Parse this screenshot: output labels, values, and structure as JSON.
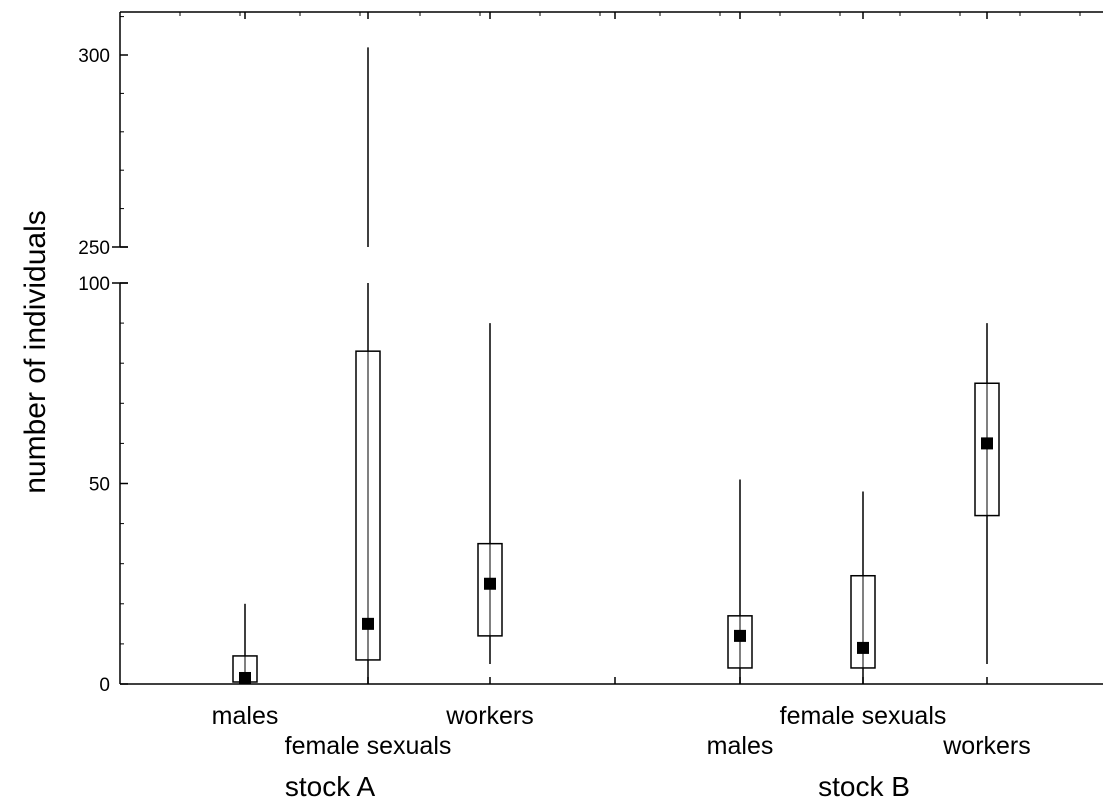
{
  "chart_data": {
    "type": "box",
    "ylabel": "number of individuals",
    "y_axis": {
      "broken": true,
      "lower_segment": {
        "range": [
          0,
          100
        ],
        "ticks": [
          0,
          50,
          100
        ]
      },
      "upper_segment": {
        "range": [
          250,
          310
        ],
        "ticks": [
          250,
          300
        ]
      }
    },
    "groups": [
      {
        "label": "stock A",
        "boxes": [
          {
            "category": "males",
            "median": 1.5,
            "q1": 0.5,
            "q3": 7,
            "min": 0,
            "max": 20
          },
          {
            "category": "female sexuals",
            "median": 15,
            "q1": 6,
            "q3": 83,
            "min": 0,
            "max": 302
          },
          {
            "category": "workers",
            "median": 25,
            "q1": 12,
            "q3": 35,
            "min": 5,
            "max": 90
          }
        ]
      },
      {
        "label": "stock B",
        "boxes": [
          {
            "category": "males",
            "median": 12,
            "q1": 4,
            "q3": 17,
            "min": 0,
            "max": 51
          },
          {
            "category": "female sexuals",
            "median": 9,
            "q1": 4,
            "q3": 27,
            "min": 0,
            "max": 48
          },
          {
            "category": "workers",
            "median": 60,
            "q1": 42,
            "q3": 75,
            "min": 5,
            "max": 90
          }
        ]
      }
    ],
    "legend": "none",
    "grid": false
  }
}
